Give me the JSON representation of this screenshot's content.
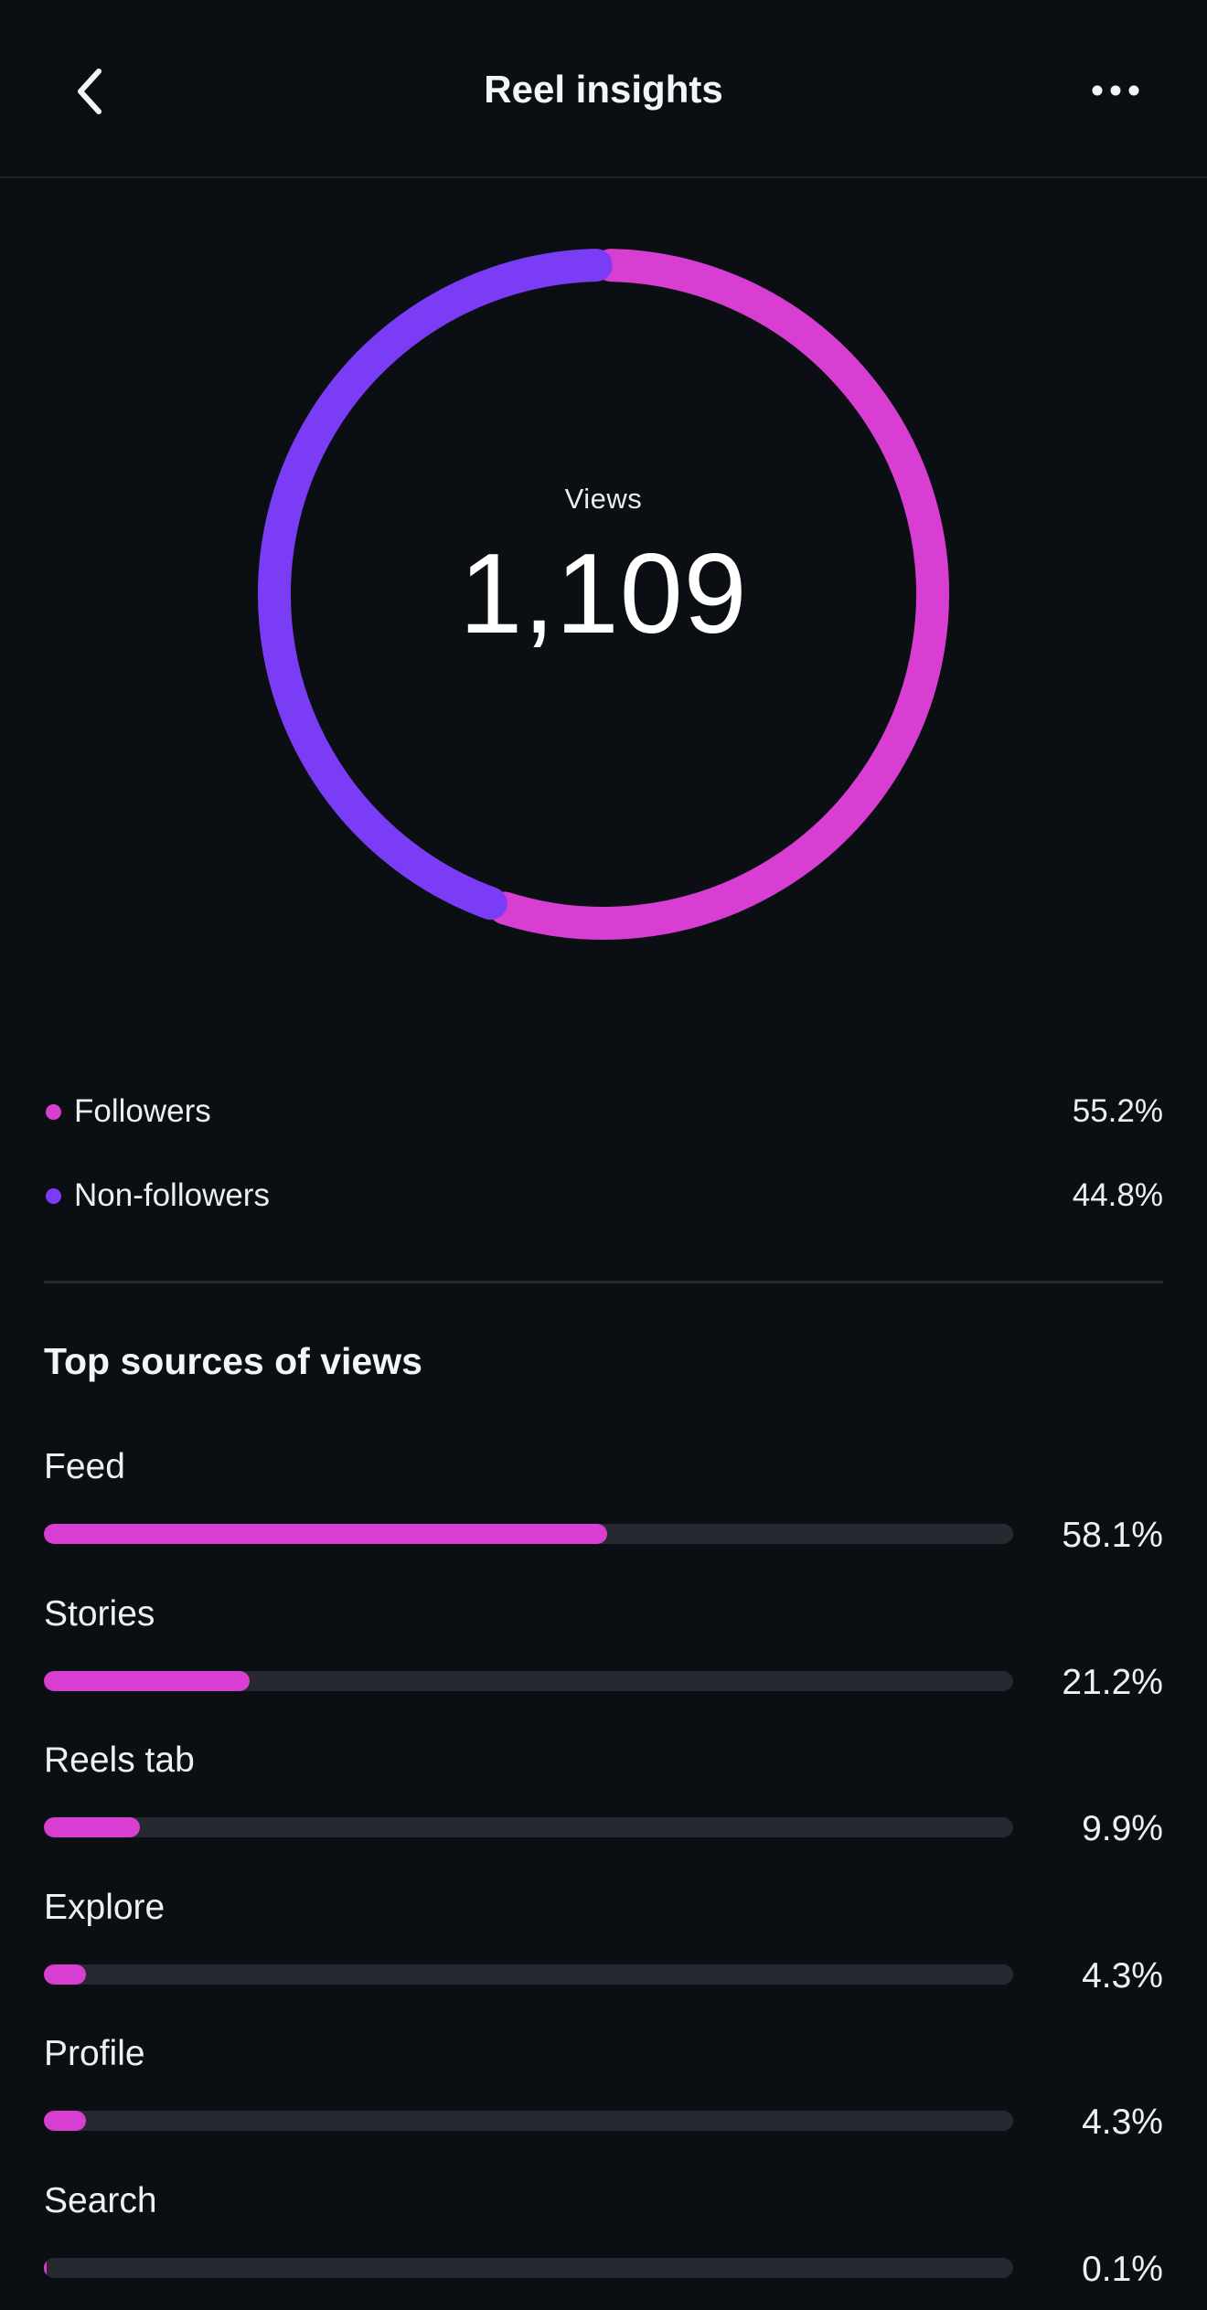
{
  "header": {
    "title": "Reel insights",
    "back_icon": "chevron-left-icon",
    "more_icon": "more-horizontal-icon"
  },
  "colors": {
    "background": "#0b0e13",
    "followers": "#d93ed2",
    "non_followers": "#7b3cf5",
    "track": "#26292f"
  },
  "views": {
    "label": "Views",
    "total": "1,109"
  },
  "chart_data": {
    "type": "pie",
    "categories": [
      "Followers",
      "Non-followers"
    ],
    "values": [
      55.2,
      44.8
    ]
  },
  "legend": [
    {
      "label": "Followers",
      "value": "55.2%"
    },
    {
      "label": "Non-followers",
      "value": "44.8%"
    }
  ],
  "sources": {
    "title": "Top sources of views",
    "items": [
      {
        "label": "Feed",
        "value": "58.1%",
        "percent": 58.1
      },
      {
        "label": "Stories",
        "value": "21.2%",
        "percent": 21.2
      },
      {
        "label": "Reels tab",
        "value": "9.9%",
        "percent": 9.9
      },
      {
        "label": "Explore",
        "value": "4.3%",
        "percent": 4.3
      },
      {
        "label": "Profile",
        "value": "4.3%",
        "percent": 4.3
      },
      {
        "label": "Search",
        "value": "0.1%",
        "percent": 0.1
      }
    ]
  }
}
